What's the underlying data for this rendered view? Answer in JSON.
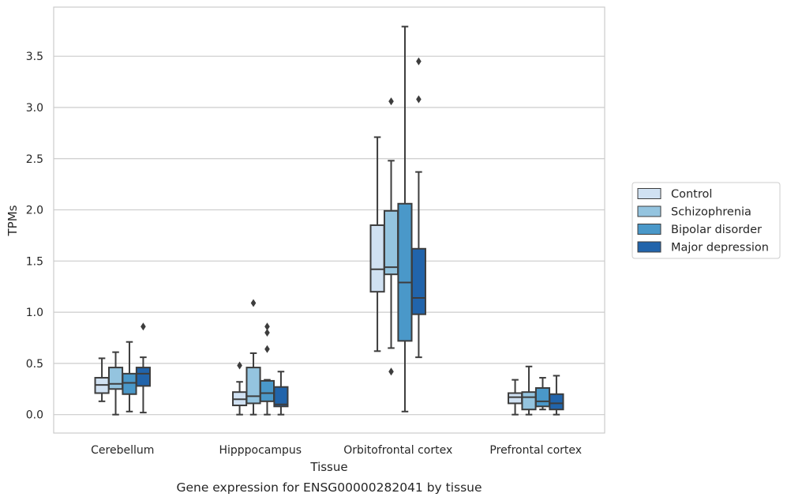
{
  "chart_data": {
    "type": "box",
    "title": "",
    "caption": "Gene expression for ENSG00000282041 by tissue",
    "xlabel": "Tissue",
    "ylabel": "TPMs",
    "ylim": [
      -0.18,
      3.98
    ],
    "yticks": [
      0.0,
      0.5,
      1.0,
      1.5,
      2.0,
      2.5,
      3.0,
      3.5
    ],
    "ytick_labels": [
      "0.0",
      "0.5",
      "1.0",
      "1.5",
      "2.0",
      "2.5",
      "3.0",
      "3.5"
    ],
    "grid": "horizontal",
    "legend_position": "right",
    "categories": [
      "Cerebellum",
      "Hipppocampus",
      "Orbitofrontal cortex",
      "Prefrontal cortex"
    ],
    "series": [
      {
        "name": "Control",
        "color": "#d0e1f2",
        "boxes": [
          {
            "whisker_low": 0.13,
            "q1": 0.21,
            "median": 0.29,
            "q3": 0.36,
            "whisker_high": 0.55,
            "outliers": []
          },
          {
            "whisker_low": 0.0,
            "q1": 0.09,
            "median": 0.15,
            "q3": 0.22,
            "whisker_high": 0.32,
            "outliers": [
              0.48
            ]
          },
          {
            "whisker_low": 0.62,
            "q1": 1.2,
            "median": 1.42,
            "q3": 1.85,
            "whisker_high": 2.71,
            "outliers": []
          },
          {
            "whisker_low": 0.0,
            "q1": 0.11,
            "median": 0.17,
            "q3": 0.21,
            "whisker_high": 0.34,
            "outliers": []
          }
        ]
      },
      {
        "name": "Schizophrenia",
        "color": "#94c4df",
        "boxes": [
          {
            "whisker_low": 0.0,
            "q1": 0.25,
            "median": 0.3,
            "q3": 0.46,
            "whisker_high": 0.61,
            "outliers": []
          },
          {
            "whisker_low": 0.0,
            "q1": 0.11,
            "median": 0.18,
            "q3": 0.46,
            "whisker_high": 0.6,
            "outliers": [
              1.09
            ]
          },
          {
            "whisker_low": 0.65,
            "q1": 1.37,
            "median": 1.44,
            "q3": 1.99,
            "whisker_high": 2.48,
            "outliers": [
              3.06,
              0.42
            ]
          },
          {
            "whisker_low": 0.0,
            "q1": 0.05,
            "median": 0.17,
            "q3": 0.22,
            "whisker_high": 0.47,
            "outliers": []
          }
        ]
      },
      {
        "name": "Bipolar disorder",
        "color": "#4a98c9",
        "boxes": [
          {
            "whisker_low": 0.03,
            "q1": 0.2,
            "median": 0.31,
            "q3": 0.4,
            "whisker_high": 0.71,
            "outliers": []
          },
          {
            "whisker_low": 0.0,
            "q1": 0.13,
            "median": 0.21,
            "q3": 0.33,
            "whisker_high": 0.34,
            "outliers": [
              0.86,
              0.8,
              0.64
            ]
          },
          {
            "whisker_low": 0.03,
            "q1": 0.72,
            "median": 1.29,
            "q3": 2.06,
            "whisker_high": 3.79,
            "outliers": []
          },
          {
            "whisker_low": 0.05,
            "q1": 0.08,
            "median": 0.13,
            "q3": 0.26,
            "whisker_high": 0.36,
            "outliers": []
          }
        ]
      },
      {
        "name": "Major depression",
        "color": "#2164ab",
        "boxes": [
          {
            "whisker_low": 0.02,
            "q1": 0.28,
            "median": 0.4,
            "q3": 0.46,
            "whisker_high": 0.56,
            "outliers": [
              0.86
            ]
          },
          {
            "whisker_low": 0.0,
            "q1": 0.08,
            "median": 0.1,
            "q3": 0.27,
            "whisker_high": 0.42,
            "outliers": []
          },
          {
            "whisker_low": 0.56,
            "q1": 0.98,
            "median": 1.14,
            "q3": 1.62,
            "whisker_high": 2.37,
            "outliers": [
              3.45,
              3.08
            ]
          },
          {
            "whisker_low": 0.0,
            "q1": 0.05,
            "median": 0.11,
            "q3": 0.2,
            "whisker_high": 0.38,
            "outliers": []
          }
        ]
      }
    ],
    "colors": {
      "grid": "#cccccc",
      "frame": "#cccccc",
      "box_edge": "#3d3d3d",
      "text": "#262626"
    }
  }
}
